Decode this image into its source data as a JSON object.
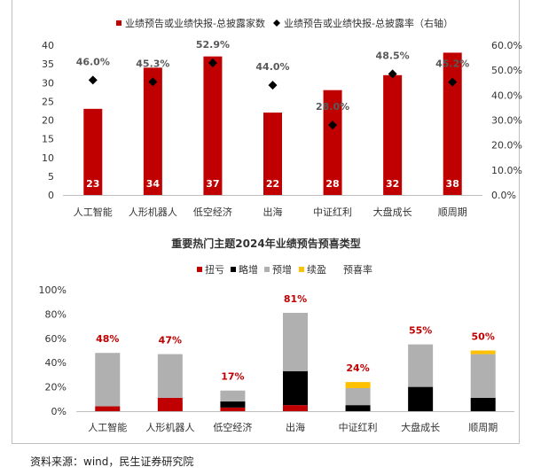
{
  "chart_data": [
    {
      "type": "bar",
      "title": "",
      "categories": [
        "人工智能",
        "人形机器人",
        "低空经济",
        "出海",
        "中证红利",
        "大盘成长",
        "顺周期"
      ],
      "legend": [
        "业绩预告或业绩快报-总披露家数",
        "业绩预告或业绩快报-总披露率（右轴）"
      ],
      "legend_position": "top",
      "series": [
        {
          "name": "业绩预告或业绩快报-总披露家数",
          "type": "bar",
          "axis": "left",
          "color": "#c00000",
          "values": [
            23,
            34,
            37,
            22,
            28,
            32,
            38
          ],
          "labels": [
            "23",
            "34",
            "37",
            "22",
            "28",
            "32",
            "38"
          ]
        },
        {
          "name": "业绩预告或业绩快报-总披露率（右轴）",
          "type": "scatter",
          "axis": "right",
          "color": "#000000",
          "values": [
            46.0,
            45.3,
            52.9,
            44.0,
            28.0,
            48.5,
            45.2
          ],
          "labels": [
            "46.0%",
            "45.3%",
            "52.9%",
            "44.0%",
            "28.0%",
            "48.5%",
            "45.2%"
          ]
        }
      ],
      "ylim": [
        0,
        40
      ],
      "yticks": [
        "0",
        "5",
        "10",
        "15",
        "20",
        "25",
        "30",
        "35",
        "40"
      ],
      "y2lim": [
        0,
        60
      ],
      "y2ticks": [
        "0.0%",
        "10.0%",
        "20.0%",
        "30.0%",
        "40.0%",
        "50.0%",
        "60.0%"
      ],
      "grid": false
    },
    {
      "type": "bar",
      "stacked": true,
      "title": "重要热门主题2024年业绩预告预喜类型",
      "categories": [
        "人工智能",
        "人形机器人",
        "低空经济",
        "出海",
        "中证红利",
        "大盘成长",
        "顺周期"
      ],
      "legend": [
        "扭亏",
        "略增",
        "预增",
        "续盈",
        "预喜率"
      ],
      "legend_position": "top",
      "series": [
        {
          "name": "扭亏",
          "color": "#c00000",
          "values": [
            4,
            11,
            3,
            5,
            0,
            0,
            0
          ]
        },
        {
          "name": "略增",
          "color": "#000000",
          "values": [
            0,
            0,
            5,
            28,
            5,
            20,
            11
          ]
        },
        {
          "name": "预增",
          "color": "#b0b0b0",
          "values": [
            44,
            36,
            9,
            48,
            14,
            35,
            36
          ]
        },
        {
          "name": "续盈",
          "color": "#ffc000",
          "values": [
            0,
            0,
            0,
            0,
            5,
            0,
            3
          ]
        }
      ],
      "rate_labels": [
        "48%",
        "47%",
        "17%",
        "81%",
        "24%",
        "55%",
        "50%"
      ],
      "rate_color": "#c00000",
      "ylim": [
        0,
        100
      ],
      "yticks": [
        "0%",
        "20%",
        "40%",
        "60%",
        "80%",
        "100%"
      ],
      "grid": false
    }
  ],
  "source": "资料来源：wind，民生证券研究院"
}
